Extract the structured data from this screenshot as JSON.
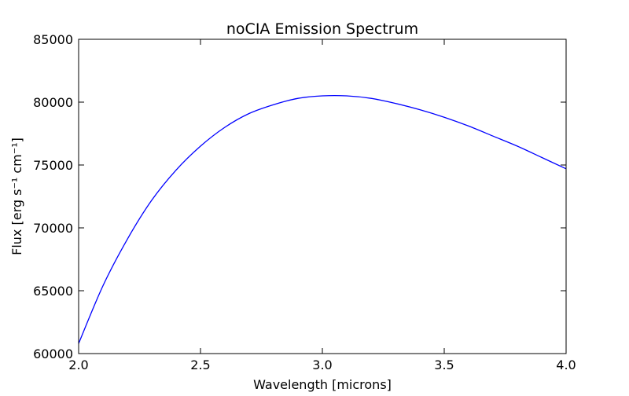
{
  "chart_data": {
    "type": "line",
    "title": "noCIA Emission Spectrum",
    "xlabel": "Wavelength  [microns]",
    "ylabel": "Flux  [erg s⁻¹ cm⁻¹]",
    "xlim": [
      2.0,
      4.0
    ],
    "ylim": [
      60000,
      85000
    ],
    "xticks": [
      2.0,
      2.5,
      3.0,
      3.5,
      4.0
    ],
    "xtick_labels": [
      "2.0",
      "2.5",
      "3.0",
      "3.5",
      "4.0"
    ],
    "yticks": [
      60000,
      65000,
      70000,
      75000,
      80000,
      85000
    ],
    "ytick_labels": [
      "60000",
      "65000",
      "70000",
      "75000",
      "80000",
      "85000"
    ],
    "grid": false,
    "series": [
      {
        "color": "#0000ff",
        "x": [
          2.0,
          2.1,
          2.2,
          2.3,
          2.4,
          2.5,
          2.6,
          2.7,
          2.8,
          2.9,
          3.0,
          3.1,
          3.2,
          3.3,
          3.4,
          3.5,
          3.6,
          3.7,
          3.8,
          3.9,
          4.0
        ],
        "y": [
          60800,
          65400,
          69100,
          72200,
          74600,
          76500,
          78000,
          79100,
          79800,
          80300,
          80500,
          80500,
          80300,
          79900,
          79400,
          78800,
          78100,
          77300,
          76500,
          75600,
          74700
        ]
      }
    ]
  }
}
